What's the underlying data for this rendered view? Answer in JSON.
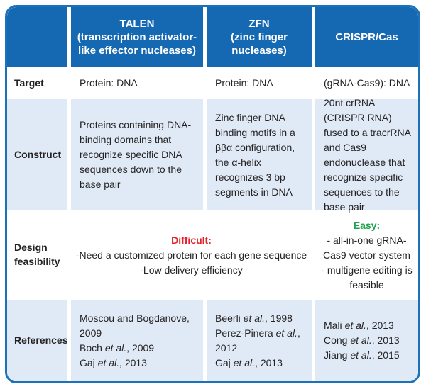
{
  "colors": {
    "header_bg": "#1568b2",
    "border": "#1b72b8",
    "row_alt_bg": "#dfeaf6",
    "text": "#262223",
    "difficult": "#e41e26",
    "easy": "#1fa44e",
    "header_text": "#ffffff"
  },
  "table": {
    "header": {
      "corner": "",
      "columns": [
        {
          "name": "TALEN",
          "sub": "(transcription activator-like effector nucleases)"
        },
        {
          "name": "ZFN",
          "sub": "(zinc finger nucleases)"
        },
        {
          "name": "CRISPR/Cas",
          "sub": ""
        }
      ]
    },
    "target_row": {
      "label": "Target",
      "talen": "Protein: DNA",
      "zfn": "Protein: DNA",
      "crispr": "(gRNA-Cas9): DNA"
    },
    "construct_row": {
      "label": "Construct",
      "talen": "Proteins containing DNA-binding domains that recognize specific DNA sequences down to the base pair",
      "zfn": "Zinc finger DNA binding motifs in a ββα configuration, the α-helix recognizes 3 bp segments in DNA",
      "crispr": "20nt crRNA (CRISPR RNA) fused to a tracrRNA and Cas9 endonuclease that recognize specific sequences to the base pair"
    },
    "design_row": {
      "label": "Design feasibility",
      "talen_zfn": {
        "title": "Difficult:",
        "lines": [
          "-Need a customized protein for each gene sequence",
          "-Low delivery efficiency"
        ]
      },
      "crispr": {
        "title": "Easy:",
        "lines": [
          "-  all-in-one gRNA-Cas9 vector system",
          "-  multigene editing is feasible"
        ]
      }
    },
    "references_row": {
      "label": "References",
      "talen": [
        "Moscou and Bogdanove, 2009",
        "Boch et al., 2009",
        "Gaj et al., 2013"
      ],
      "zfn": [
        "Beerli et al., 1998",
        "Perez-Pinera et al., 2012",
        "Gaj et al., 2013"
      ],
      "crispr": [
        "Mali et al., 2013",
        "Cong et al., 2013",
        "Jiang et al., 2015"
      ]
    }
  }
}
